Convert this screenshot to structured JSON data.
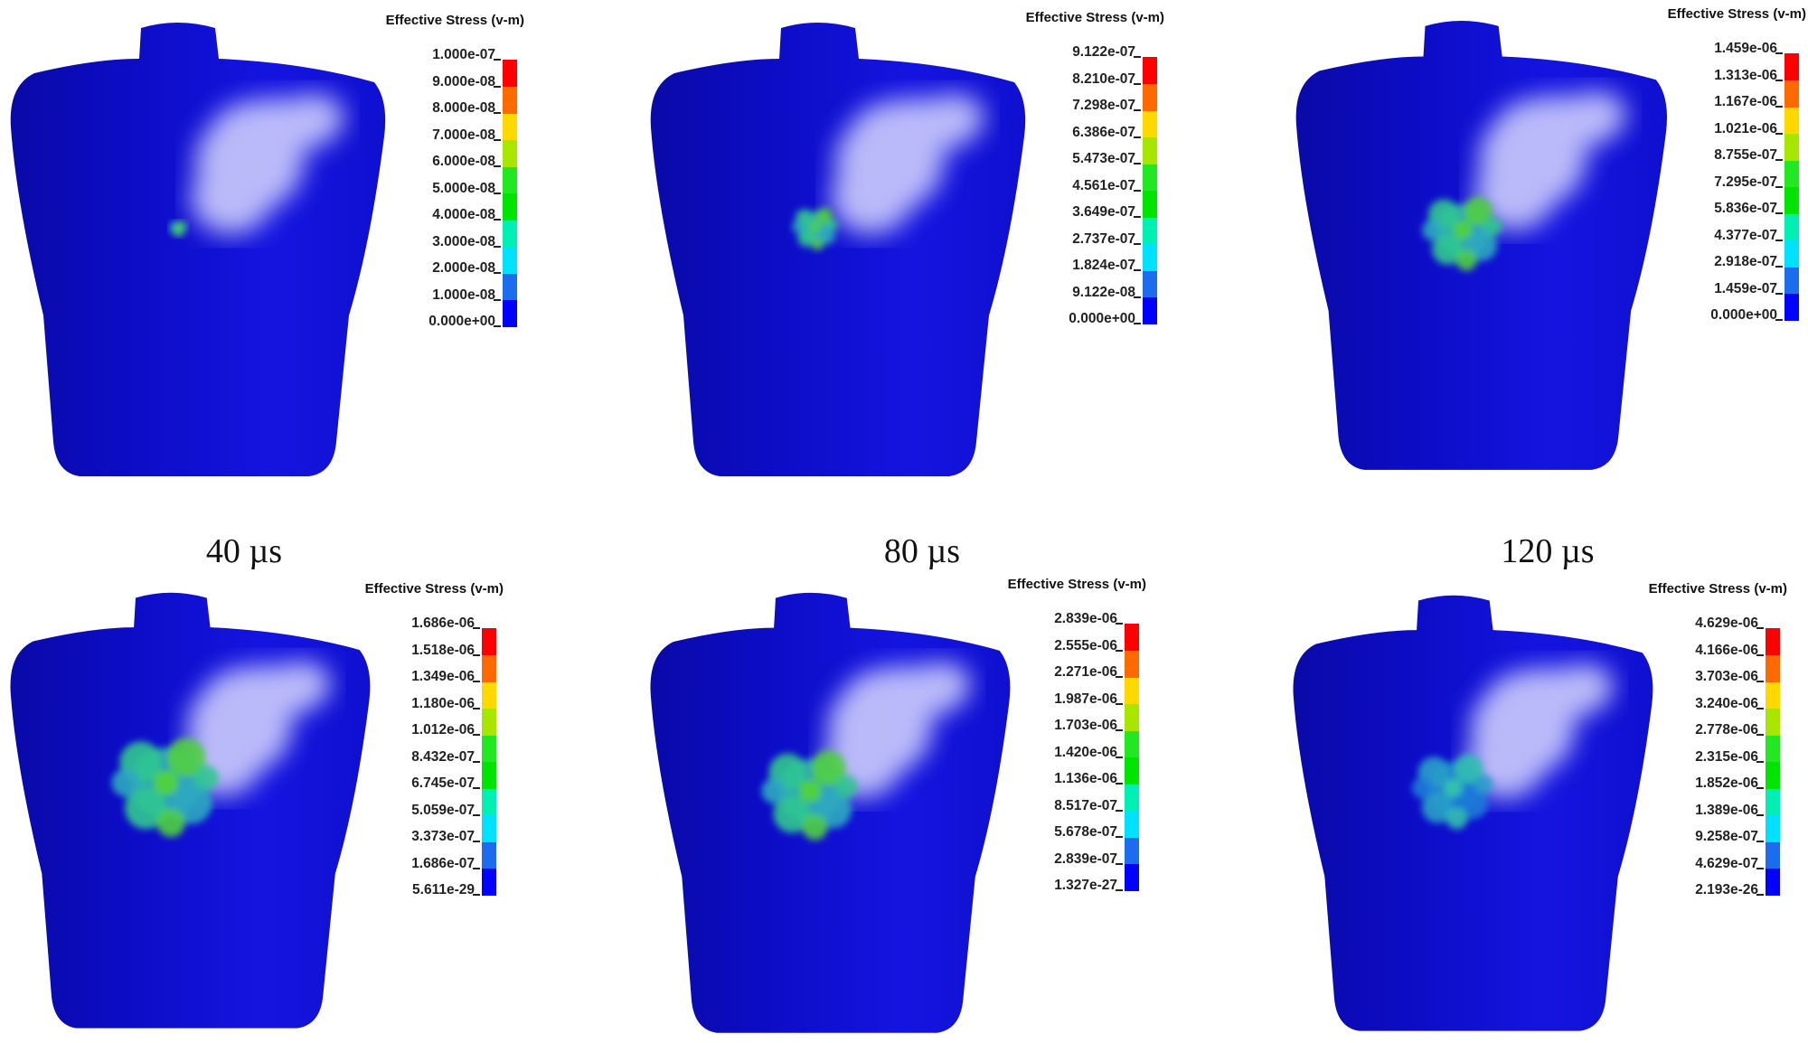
{
  "legend_colors": [
    "#0000ff",
    "#1c6cf0",
    "#00e0ff",
    "#00f0b4",
    "#00e400",
    "#22e822",
    "#a8e600",
    "#ffd800",
    "#ff6a00",
    "#ff0000"
  ],
  "body_color": "#1010d8",
  "captions": [
    "40 µs",
    "80 µs",
    "120 µs"
  ],
  "panels": [
    {
      "legend_title": "Effective Stress (v-m)",
      "labels": [
        "1.000e-07",
        "9.000e-08",
        "8.000e-08",
        "7.000e-08",
        "6.000e-08",
        "5.000e-08",
        "4.000e-08",
        "3.000e-08",
        "2.000e-08",
        "1.000e-08",
        "0.000e+00"
      ]
    },
    {
      "legend_title": "Effective Stress (v-m)",
      "labels": [
        "9.122e-07",
        "8.210e-07",
        "7.298e-07",
        "6.386e-07",
        "5.473e-07",
        "4.561e-07",
        "3.649e-07",
        "2.737e-07",
        "1.824e-07",
        "9.122e-08",
        "0.000e+00"
      ]
    },
    {
      "legend_title": "Effective Stress (v-m)",
      "labels": [
        "1.459e-06",
        "1.313e-06",
        "1.167e-06",
        "1.021e-06",
        "8.755e-07",
        "7.295e-07",
        "5.836e-07",
        "4.377e-07",
        "2.918e-07",
        "1.459e-07",
        "0.000e+00"
      ]
    },
    {
      "legend_title": "Effective Stress (v-m)",
      "labels": [
        "1.686e-06",
        "1.518e-06",
        "1.349e-06",
        "1.180e-06",
        "1.012e-06",
        "8.432e-07",
        "6.745e-07",
        "5.059e-07",
        "3.373e-07",
        "1.686e-07",
        "5.611e-29"
      ]
    },
    {
      "legend_title": "Effective Stress (v-m)",
      "labels": [
        "2.839e-06",
        "2.555e-06",
        "2.271e-06",
        "1.987e-06",
        "1.703e-06",
        "1.420e-06",
        "1.136e-06",
        "8.517e-07",
        "5.678e-07",
        "2.839e-07",
        "1.327e-27"
      ]
    },
    {
      "legend_title": "Effective Stress (v-m)",
      "labels": [
        "4.629e-06",
        "4.166e-06",
        "3.703e-06",
        "3.240e-06",
        "2.778e-06",
        "2.315e-06",
        "1.852e-06",
        "1.389e-06",
        "9.258e-07",
        "4.629e-07",
        "2.193e-26"
      ]
    }
  ]
}
